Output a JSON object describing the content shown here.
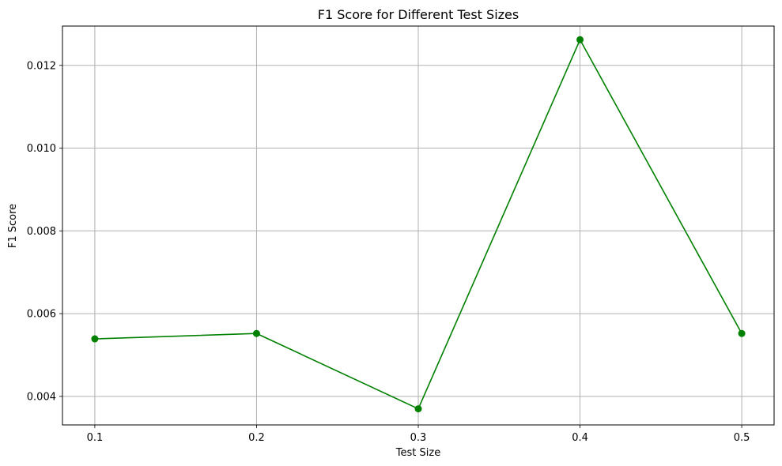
{
  "chart_data": {
    "type": "line",
    "title": "F1 Score for Different Test Sizes",
    "xlabel": "Test Size",
    "ylabel": "F1 Score",
    "x": [
      0.1,
      0.2,
      0.3,
      0.4,
      0.5
    ],
    "xticks": [
      "0.1",
      "0.2",
      "0.3",
      "0.4",
      "0.5"
    ],
    "yticks": [
      "0.004",
      "0.006",
      "0.008",
      "0.010",
      "0.012"
    ],
    "xlim": [
      0.08,
      0.52
    ],
    "ylim": [
      0.00331,
      0.01295
    ],
    "grid": true,
    "series": [
      {
        "values": [
          0.00539,
          0.00552,
          0.0037,
          0.01262,
          0.00552
        ],
        "color": "#008000",
        "marker": "circle"
      }
    ]
  }
}
